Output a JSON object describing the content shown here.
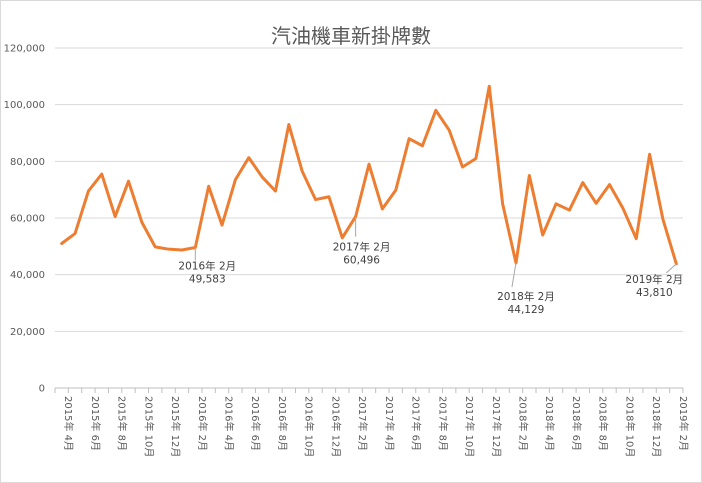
{
  "chart_data": {
    "type": "line",
    "title": "汽油機車新掛牌數",
    "xlabel": "",
    "ylabel": "",
    "ylim": [
      0,
      120000
    ],
    "yticks": [
      0,
      20000,
      40000,
      60000,
      80000,
      100000,
      120000
    ],
    "ytick_labels": [
      "0",
      "20,000",
      "40,000",
      "60,000",
      "80,000",
      "100,000",
      "120,000"
    ],
    "grid": "horizontal",
    "line_color": "#ed7d31",
    "categories": [
      "2015年 4月",
      "2015年 5月",
      "2015年 6月",
      "2015年 7月",
      "2015年 8月",
      "2015年 9月",
      "2015年 10月",
      "2015年 11月",
      "2015年 12月",
      "2016年 1月",
      "2016年 2月",
      "2016年 3月",
      "2016年 4月",
      "2016年 5月",
      "2016年 6月",
      "2016年 7月",
      "2016年 8月",
      "2016年 9月",
      "2016年 10月",
      "2016年 11月",
      "2016年 12月",
      "2017年 1月",
      "2017年 2月",
      "2017年 3月",
      "2017年 4月",
      "2017年 5月",
      "2017年 6月",
      "2017年 7月",
      "2017年 8月",
      "2017年 9月",
      "2017年 10月",
      "2017年 11月",
      "2017年 12月",
      "2018年 1月",
      "2018年 2月",
      "2018年 3月",
      "2018年 4月",
      "2018年 5月",
      "2018年 6月",
      "2018年 7月",
      "2018年 8月",
      "2018年 9月",
      "2018年 10月",
      "2018年 11月",
      "2018年 12月",
      "2019年 1月",
      "2019年 2月"
    ],
    "xtick_labels": [
      "2015年 4月",
      "2015年 6月",
      "2015年 8月",
      "2015年 10月",
      "2015年 12月",
      "2016年 2月",
      "2016年 4月",
      "2016年 6月",
      "2016年 8月",
      "2016年 10月",
      "2016年 12月",
      "2017年 2月",
      "2017年 4月",
      "2017年 6月",
      "2017年 8月",
      "2017年 10月",
      "2017年 12月",
      "2018年 2月",
      "2018年 4月",
      "2018年 6月",
      "2018年 8月",
      "2018年 10月",
      "2018年 12月",
      "2019年 2月"
    ],
    "series": [
      {
        "values": [
          51000,
          54500,
          69500,
          75500,
          60500,
          73000,
          58500,
          49800,
          49000,
          48700,
          49583,
          71200,
          57500,
          73500,
          81300,
          74500,
          69500,
          93000,
          76500,
          66500,
          67500,
          53000,
          60496,
          79000,
          63200,
          69800,
          88000,
          85500,
          98000,
          91000,
          78000,
          81000,
          106500,
          65000,
          44129,
          75000,
          54000,
          65000,
          62800,
          72500,
          65200,
          71800,
          63500,
          52700,
          82500,
          59500,
          43810
        ]
      }
    ],
    "annotations": [
      {
        "category": "2016年 2月",
        "label": "2016年 2月",
        "value_text": "49,583"
      },
      {
        "category": "2017年 2月",
        "label": "2017年 2月",
        "value_text": "60,496"
      },
      {
        "category": "2018年 2月",
        "label": "2018年 2月",
        "value_text": "44,129"
      },
      {
        "category": "2019年 2月",
        "label": "2019年 2月",
        "value_text": "43,810"
      }
    ]
  }
}
